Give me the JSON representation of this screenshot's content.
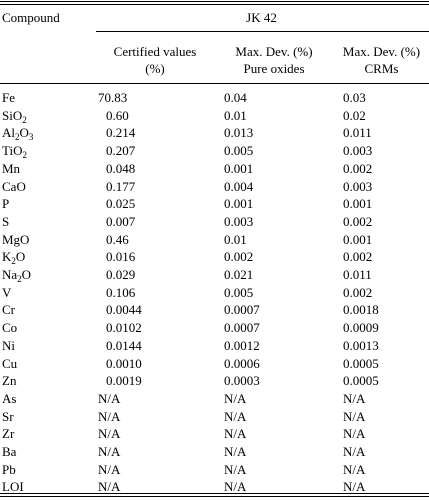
{
  "header": {
    "compound_label": "Compound",
    "group_label": "JK 42",
    "col1": {
      "line1": "Certified values",
      "line2": "(%)"
    },
    "col2": {
      "line1": "Max. Dev. (%)",
      "line2": "Pure oxides"
    },
    "col3": {
      "line1": "Max. Dev. (%)",
      "line2": "CRMs"
    }
  },
  "rows": [
    {
      "compound": "Fe",
      "sub": "",
      "certified": "70.83",
      "pure_oxides": "0.04",
      "crms": "0.03"
    },
    {
      "compound": "SiO",
      "sub": "2",
      "certified": "0.60",
      "pure_oxides": "0.01",
      "crms": "0.02"
    },
    {
      "compound": "Al",
      "sub": "2",
      "compound2": "O",
      "sub2": "3",
      "certified": "0.214",
      "pure_oxides": "0.013",
      "crms": "0.011"
    },
    {
      "compound": "TiO",
      "sub": "2",
      "certified": "0.207",
      "pure_oxides": "0.005",
      "crms": "0.003"
    },
    {
      "compound": "Mn",
      "sub": "",
      "certified": "0.048",
      "pure_oxides": "0.001",
      "crms": "0.002"
    },
    {
      "compound": "CaO",
      "sub": "",
      "certified": "0.177",
      "pure_oxides": "0.004",
      "crms": "0.003"
    },
    {
      "compound": "P",
      "sub": "",
      "certified": "0.025",
      "pure_oxides": "0.001",
      "crms": "0.001"
    },
    {
      "compound": "S",
      "sub": "",
      "certified": "0.007",
      "pure_oxides": "0.003",
      "crms": "0.002"
    },
    {
      "compound": "MgO",
      "sub": "",
      "certified": "0.46",
      "pure_oxides": "0.01",
      "crms": "0.001"
    },
    {
      "compound": "K",
      "sub": "2",
      "compound2": "O",
      "sub2": "",
      "certified": "0.016",
      "pure_oxides": "0.002",
      "crms": "0.002"
    },
    {
      "compound": "Na",
      "sub": "2",
      "compound2": "O",
      "sub2": "",
      "certified": "0.029",
      "pure_oxides": "0.021",
      "crms": "0.011"
    },
    {
      "compound": "V",
      "sub": "",
      "certified": "0.106",
      "pure_oxides": "0.005",
      "crms": "0.002"
    },
    {
      "compound": "Cr",
      "sub": "",
      "certified": "0.0044",
      "pure_oxides": "0.0007",
      "crms": "0.0018"
    },
    {
      "compound": "Co",
      "sub": "",
      "certified": "0.0102",
      "pure_oxides": "0.0007",
      "crms": "0.0009"
    },
    {
      "compound": "Ni",
      "sub": "",
      "certified": "0.0144",
      "pure_oxides": "0.0012",
      "crms": "0.0013"
    },
    {
      "compound": "Cu",
      "sub": "",
      "certified": "0.0010",
      "pure_oxides": "0.0006",
      "crms": "0.0005"
    },
    {
      "compound": "Zn",
      "sub": "",
      "certified": "0.0019",
      "pure_oxides": "0.0003",
      "crms": "0.0005"
    },
    {
      "compound": "As",
      "sub": "",
      "certified": "N/A",
      "pure_oxides": "N/A",
      "crms": "N/A"
    },
    {
      "compound": "Sr",
      "sub": "",
      "certified": "N/A",
      "pure_oxides": "N/A",
      "crms": "N/A"
    },
    {
      "compound": "Zr",
      "sub": "",
      "certified": "N/A",
      "pure_oxides": "N/A",
      "crms": "N/A"
    },
    {
      "compound": "Ba",
      "sub": "",
      "certified": "N/A",
      "pure_oxides": "N/A",
      "crms": "N/A"
    },
    {
      "compound": "Pb",
      "sub": "",
      "certified": "N/A",
      "pure_oxides": "N/A",
      "crms": "N/A"
    },
    {
      "compound": "LOI",
      "sub": "",
      "certified": "N/A",
      "pure_oxides": "N/A",
      "crms": "N/A"
    }
  ]
}
